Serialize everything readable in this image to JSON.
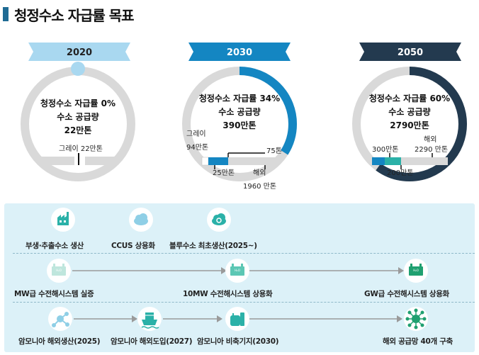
{
  "title": "청정수소 자급률 목표",
  "colors": {
    "dark": "#233a4f",
    "blue": "#1486c2",
    "teal": "#2bb1a8",
    "gray": "#d9d9d9",
    "light_blue": "#a9d8f0",
    "panel": "#dcf1f8"
  },
  "targets": [
    {
      "year": "2020",
      "ratio_label": "청정수소 자급률 0%",
      "supply_label": "수소 공급량",
      "supply_value": "22만톤",
      "self_sufficiency_pct": 0,
      "grey_label": "그레이 22만톤"
    },
    {
      "year": "2030",
      "ratio_label": "청정수소 자급률 34%",
      "supply_label": "수소 공급량",
      "supply_value": "390만톤",
      "self_sufficiency_pct": 34,
      "breakdown": {
        "grey": "그레이",
        "grey_value": "94만톤",
        "blue_value": "25만톤",
        "green_value": "75톤",
        "overseas": "해외",
        "overseas_value": "1960 만톤"
      }
    },
    {
      "year": "2050",
      "ratio_label": "청정수소 자급률 60%",
      "supply_label": "수소 공급량",
      "supply_value": "2790만톤",
      "self_sufficiency_pct": 60,
      "breakdown": {
        "blue_value": "300만톤",
        "green_value": "200만톤",
        "overseas": "해외",
        "overseas_value": "2290 만톤"
      }
    }
  ],
  "roadmap": {
    "row1": [
      {
        "label": "부생·추출수소 생산",
        "icon": "factory-icon"
      },
      {
        "label": "CCUS 상용화",
        "icon": "cloud-icon"
      },
      {
        "label": "블루수소 최초생산(2025~)",
        "icon": "cloud-recycle-icon"
      }
    ],
    "row2": [
      {
        "label": "MW급 수전해시스템 실증",
        "icon": "electrolyzer-icon"
      },
      {
        "label": "10MW 수전해시스템 상용화",
        "icon": "electrolyzer-icon"
      },
      {
        "label": "GW급 수전해시스템 상용화",
        "icon": "electrolyzer-icon"
      }
    ],
    "row3": [
      {
        "label": "암모니아 해외생산(2025)",
        "icon": "molecule-icon"
      },
      {
        "label": "암모니아 해외도입(2027)",
        "icon": "ship-icon"
      },
      {
        "label": "암모니아 비축기지(2030)",
        "icon": "storage-tank-icon"
      },
      {
        "label": "해외 공급망 40개 구축",
        "icon": "network-icon"
      }
    ]
  }
}
